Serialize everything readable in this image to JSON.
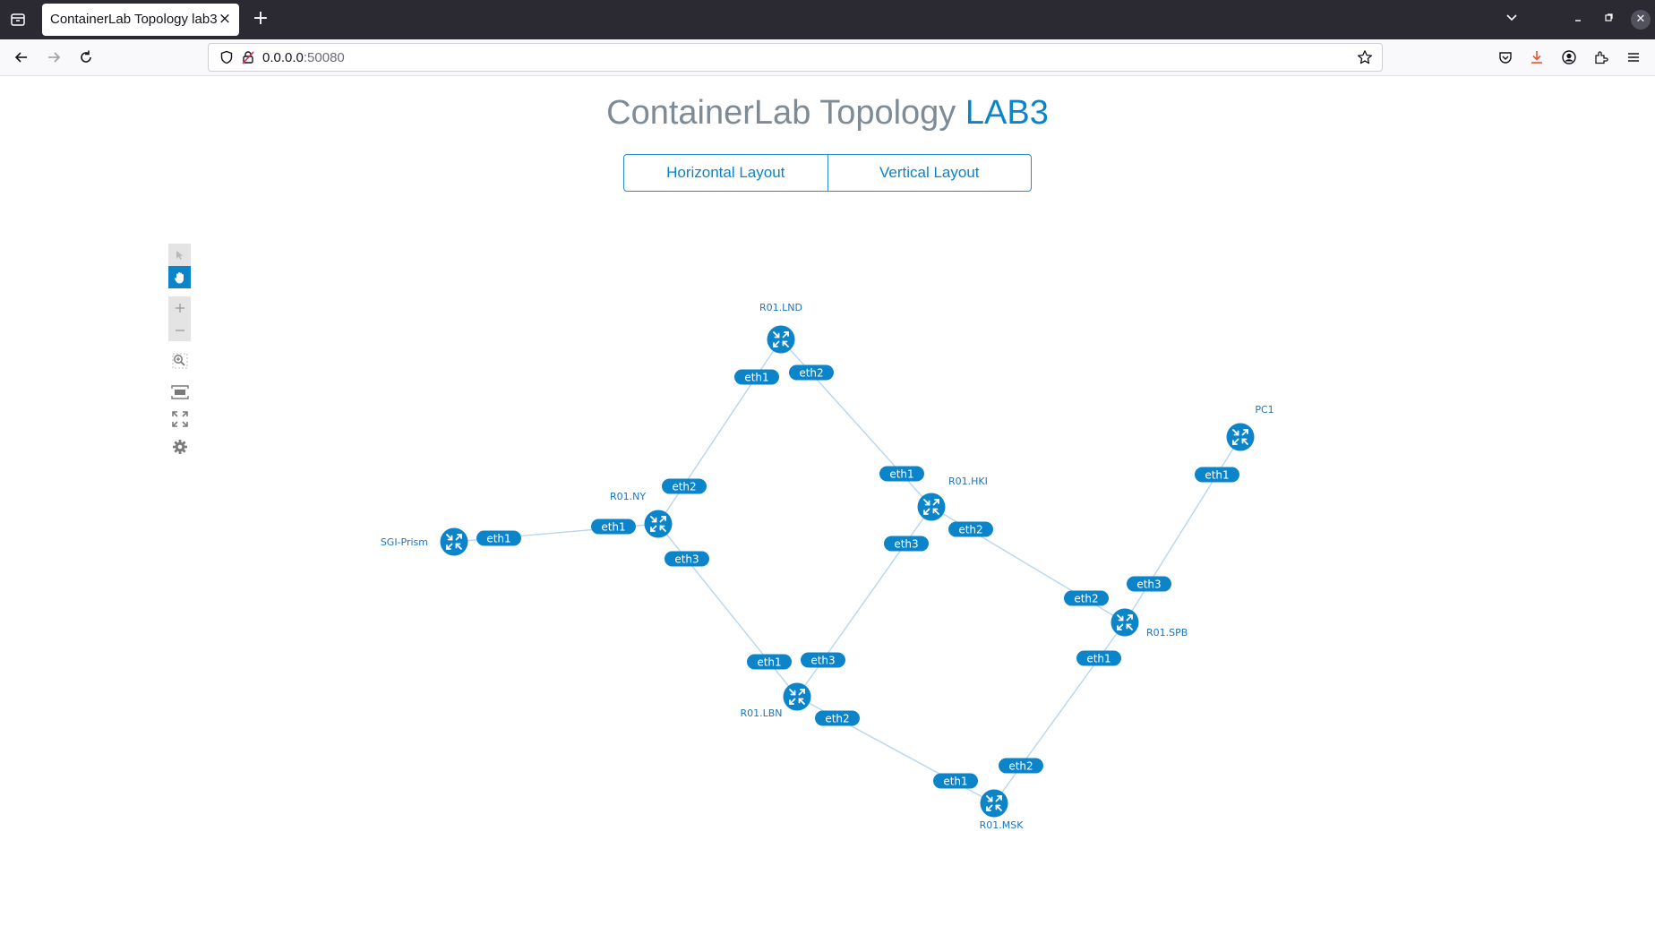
{
  "browser": {
    "tab_title": "ContainerLab Topology lab3",
    "url_host": "0.0.0.0",
    "url_port": ":50080"
  },
  "page": {
    "title_main": "ContainerLab Topology ",
    "title_accent": "LAB3",
    "buttons": [
      "Horizontal Layout",
      "Vertical Layout"
    ]
  },
  "colors": {
    "accent": "#0b84c9",
    "link": "#b7d6ef",
    "node": "#0b84c9"
  },
  "toolbox_icons": [
    "select-icon",
    "pan-hand-icon",
    "zoom-in-icon",
    "zoom-out-icon",
    "zoom-selection-icon",
    "fit-stage-icon",
    "fullscreen-icon",
    "settings-gear-icon"
  ],
  "topology": {
    "nodes": [
      {
        "id": "lnd",
        "name": "R01.LND"
      },
      {
        "id": "ny",
        "name": "R01.NY"
      },
      {
        "id": "hki",
        "name": "R01.HKI"
      },
      {
        "id": "sgi",
        "name": "SGI-Prism"
      },
      {
        "id": "pc1",
        "name": "PC1"
      },
      {
        "id": "spb",
        "name": "R01.SPB"
      },
      {
        "id": "lbn",
        "name": "R01.LBN"
      },
      {
        "id": "msk",
        "name": "R01.MSK"
      }
    ],
    "links": [
      {
        "a": "lnd",
        "a_port": "eth1",
        "b": "ny",
        "b_port": "eth2"
      },
      {
        "a": "lnd",
        "a_port": "eth2",
        "b": "hki",
        "b_port": "eth1"
      },
      {
        "a": "sgi",
        "a_port": "eth1",
        "b": "ny",
        "b_port": "eth1"
      },
      {
        "a": "ny",
        "a_port": "eth3",
        "b": "lbn",
        "b_port": "eth1"
      },
      {
        "a": "hki",
        "a_port": "eth3",
        "b": "lbn",
        "b_port": "eth3"
      },
      {
        "a": "hki",
        "a_port": "eth2",
        "b": "spb",
        "b_port": "eth2"
      },
      {
        "a": "pc1",
        "a_port": "eth1",
        "b": "spb",
        "b_port": "eth3"
      },
      {
        "a": "spb",
        "a_port": "eth1",
        "b": "msk",
        "b_port": "eth2"
      },
      {
        "a": "lbn",
        "a_port": "eth2",
        "b": "msk",
        "b_port": "eth1"
      }
    ]
  }
}
